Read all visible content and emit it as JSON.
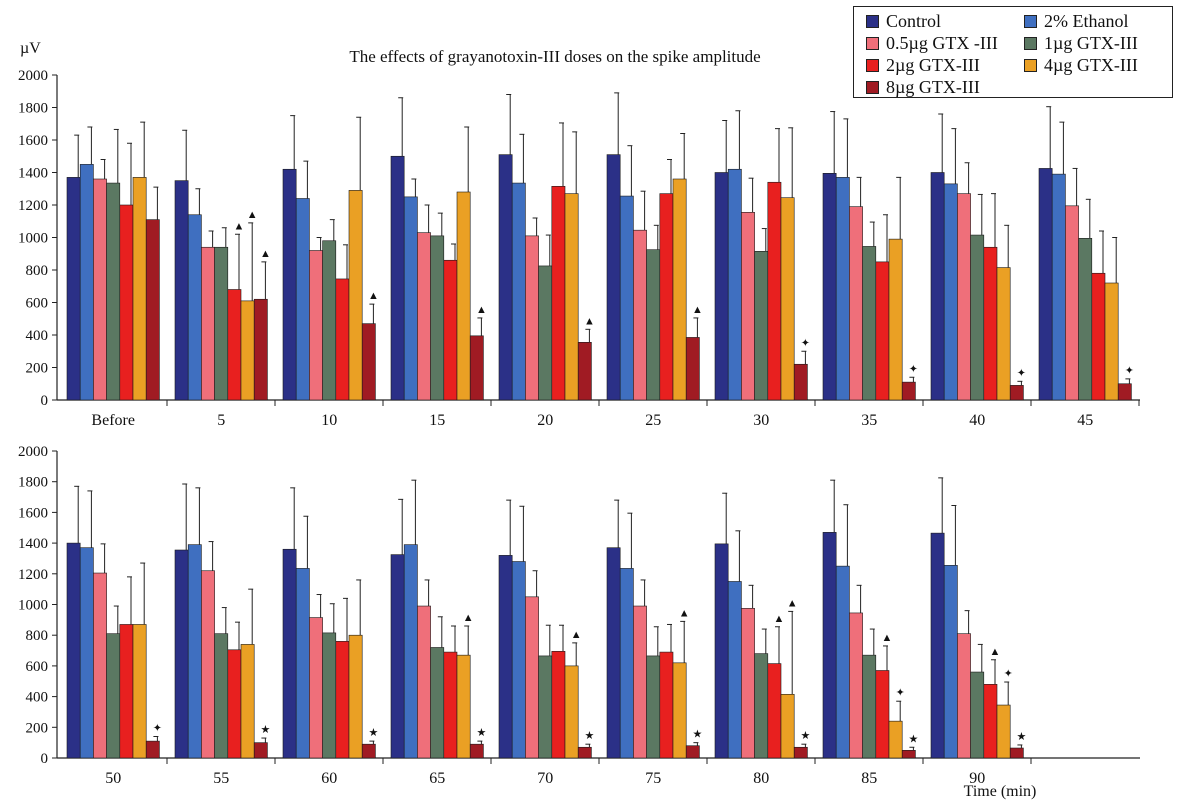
{
  "chart_data": {
    "type": "bar",
    "title": "The effects of grayanotoxin-III doses on the spike amplitude",
    "ylabel": "µV",
    "xlabel": "Time (min)",
    "ylim": [
      0,
      2000
    ],
    "yticks": [
      0,
      200,
      400,
      600,
      800,
      1000,
      1200,
      1400,
      1600,
      1800,
      2000
    ],
    "grid": false,
    "legend_position": "top-right",
    "series": [
      {
        "name": "Control",
        "color": "#2b3087"
      },
      {
        "name": "2% Ethanol",
        "color": "#3f6fc0"
      },
      {
        "name": "0.5µg GTX -III",
        "color": "#ef6f7a"
      },
      {
        "name": "1µg GTX-III",
        "color": "#5b7862"
      },
      {
        "name": "2µg GTX-III",
        "color": "#e8201f"
      },
      {
        "name": "4µg GTX-III",
        "color": "#eaa024"
      },
      {
        "name": "8µg GTX-III",
        "color": "#a01b23"
      }
    ],
    "panels": [
      {
        "categories": [
          "Before",
          "5",
          "10",
          "15",
          "20",
          "25",
          "30",
          "35",
          "40",
          "45"
        ],
        "values": [
          [
            1370,
            1450,
            1360,
            1335,
            1200,
            1370,
            1110
          ],
          [
            1350,
            1140,
            940,
            940,
            680,
            610,
            620
          ],
          [
            1420,
            1240,
            920,
            980,
            745,
            1290,
            470
          ],
          [
            1500,
            1250,
            1030,
            1010,
            860,
            1280,
            395
          ],
          [
            1510,
            1335,
            1010,
            825,
            1315,
            1270,
            355
          ],
          [
            1510,
            1255,
            1045,
            925,
            1270,
            1360,
            385
          ],
          [
            1400,
            1420,
            1155,
            915,
            1340,
            1245,
            220
          ],
          [
            1395,
            1370,
            1190,
            945,
            850,
            990,
            110
          ],
          [
            1400,
            1330,
            1270,
            1015,
            940,
            815,
            90
          ],
          [
            1425,
            1390,
            1195,
            995,
            780,
            720,
            100
          ]
        ],
        "errors": [
          [
            260,
            230,
            120,
            330,
            380,
            340,
            200
          ],
          [
            310,
            160,
            100,
            120,
            340,
            480,
            230
          ],
          [
            330,
            230,
            80,
            130,
            210,
            450,
            120
          ],
          [
            360,
            110,
            170,
            140,
            100,
            400,
            110
          ],
          [
            370,
            300,
            110,
            190,
            390,
            380,
            80
          ],
          [
            380,
            310,
            240,
            150,
            210,
            280,
            120
          ],
          [
            320,
            360,
            210,
            140,
            330,
            430,
            80
          ],
          [
            380,
            360,
            180,
            150,
            290,
            380,
            30
          ],
          [
            360,
            340,
            190,
            250,
            330,
            260,
            25
          ],
          [
            380,
            320,
            230,
            240,
            260,
            280,
            30
          ]
        ],
        "annotations": [
          {
            "category": "5",
            "series": "2µg GTX-III",
            "symbol": "▲"
          },
          {
            "category": "5",
            "series": "4µg GTX-III",
            "symbol": "▲"
          },
          {
            "category": "5",
            "series": "8µg GTX-III",
            "symbol": "▲"
          },
          {
            "category": "10",
            "series": "8µg GTX-III",
            "symbol": "▲"
          },
          {
            "category": "15",
            "series": "8µg GTX-III",
            "symbol": "▲"
          },
          {
            "category": "20",
            "series": "8µg GTX-III",
            "symbol": "▲"
          },
          {
            "category": "25",
            "series": "8µg GTX-III",
            "symbol": "▲"
          },
          {
            "category": "30",
            "series": "8µg GTX-III",
            "symbol": "✦"
          },
          {
            "category": "35",
            "series": "8µg GTX-III",
            "symbol": "✦"
          },
          {
            "category": "40",
            "series": "8µg GTX-III",
            "symbol": "✦"
          },
          {
            "category": "45",
            "series": "8µg GTX-III",
            "symbol": "✦"
          }
        ]
      },
      {
        "categories": [
          "50",
          "55",
          "60",
          "65",
          "70",
          "75",
          "80",
          "85",
          "90"
        ],
        "values": [
          [
            1400,
            1370,
            1205,
            810,
            870,
            870,
            110
          ],
          [
            1355,
            1390,
            1220,
            810,
            705,
            740,
            100
          ],
          [
            1360,
            1235,
            915,
            815,
            760,
            800,
            90
          ],
          [
            1325,
            1390,
            990,
            720,
            690,
            670,
            90
          ],
          [
            1320,
            1280,
            1050,
            665,
            695,
            600,
            70
          ],
          [
            1370,
            1235,
            990,
            665,
            690,
            620,
            80
          ],
          [
            1395,
            1150,
            975,
            680,
            615,
            415,
            70
          ],
          [
            1470,
            1250,
            945,
            670,
            570,
            240,
            50
          ],
          [
            1465,
            1255,
            810,
            560,
            480,
            345,
            65
          ]
        ],
        "errors": [
          [
            370,
            370,
            190,
            180,
            310,
            400,
            30
          ],
          [
            430,
            370,
            190,
            170,
            180,
            360,
            30
          ],
          [
            400,
            340,
            150,
            190,
            280,
            360,
            20
          ],
          [
            360,
            420,
            170,
            200,
            170,
            190,
            20
          ],
          [
            360,
            360,
            170,
            200,
            170,
            150,
            20
          ],
          [
            310,
            360,
            170,
            190,
            180,
            270,
            20
          ],
          [
            330,
            330,
            150,
            160,
            240,
            540,
            20
          ],
          [
            340,
            400,
            180,
            170,
            160,
            130,
            20
          ],
          [
            360,
            390,
            150,
            180,
            160,
            150,
            20
          ]
        ],
        "annotations": [
          {
            "category": "50",
            "series": "8µg GTX-III",
            "symbol": "✦"
          },
          {
            "category": "55",
            "series": "8µg GTX-III",
            "symbol": "★"
          },
          {
            "category": "60",
            "series": "8µg GTX-III",
            "symbol": "★"
          },
          {
            "category": "65",
            "series": "4µg GTX-III",
            "symbol": "▲"
          },
          {
            "category": "65",
            "series": "8µg GTX-III",
            "symbol": "★"
          },
          {
            "category": "70",
            "series": "4µg GTX-III",
            "symbol": "▲"
          },
          {
            "category": "70",
            "series": "8µg GTX-III",
            "symbol": "★"
          },
          {
            "category": "75",
            "series": "4µg GTX-III",
            "symbol": "▲"
          },
          {
            "category": "75",
            "series": "8µg GTX-III",
            "symbol": "★"
          },
          {
            "category": "80",
            "series": "2µg GTX-III",
            "symbol": "▲"
          },
          {
            "category": "80",
            "series": "4µg GTX-III",
            "symbol": "▲"
          },
          {
            "category": "80",
            "series": "8µg GTX-III",
            "symbol": "★"
          },
          {
            "category": "85",
            "series": "2µg GTX-III",
            "symbol": "▲"
          },
          {
            "category": "85",
            "series": "4µg GTX-III",
            "symbol": "✦"
          },
          {
            "category": "85",
            "series": "8µg GTX-III",
            "symbol": "★"
          },
          {
            "category": "90",
            "series": "2µg GTX-III",
            "symbol": "▲"
          },
          {
            "category": "90",
            "series": "4µg GTX-III",
            "symbol": "✦"
          },
          {
            "category": "90",
            "series": "8µg GTX-III",
            "symbol": "★"
          }
        ]
      }
    ]
  }
}
